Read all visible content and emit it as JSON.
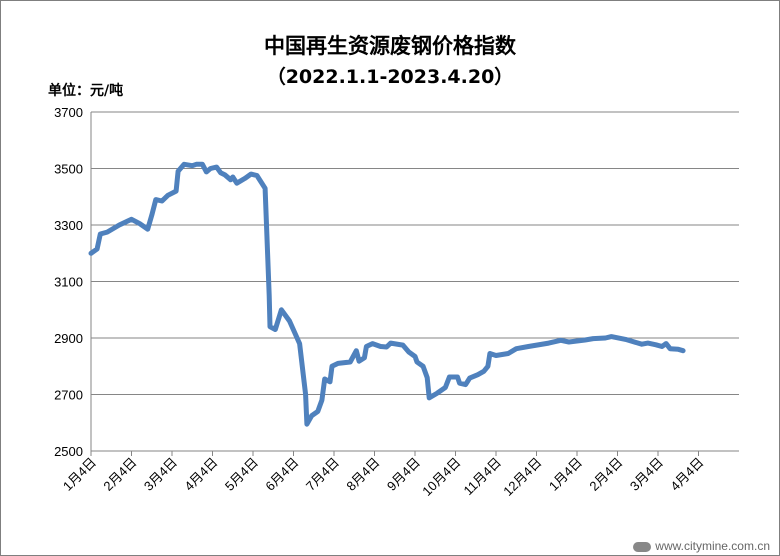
{
  "chart_data": {
    "type": "line",
    "title": "中国再生资源废钢价格指数",
    "subtitle": "（2022.1.1-2023.4.20）",
    "ylabel": "单位：元/吨",
    "xlabel": "",
    "ylim": [
      2500,
      3700
    ],
    "yticks": [
      2500,
      2700,
      2900,
      3100,
      3300,
      3500,
      3700
    ],
    "grid": "horizontal",
    "legend": "none",
    "categories": [
      "1月4日",
      "2月4日",
      "3月4日",
      "4月4日",
      "5月4日",
      "6月4日",
      "7月4日",
      "8月4日",
      "9月4日",
      "10月4日",
      "11月4日",
      "12月4日",
      "1月4日",
      "2月4日",
      "3月4日",
      "4月4日"
    ],
    "color": "#4f81bd",
    "series": [
      {
        "values": [
          [
            0,
            3200
          ],
          [
            0.15,
            3215
          ],
          [
            0.23,
            3268
          ],
          [
            0.4,
            3275
          ],
          [
            0.7,
            3300
          ],
          [
            1.0,
            3320
          ],
          [
            1.2,
            3305
          ],
          [
            1.4,
            3285
          ],
          [
            1.5,
            3335
          ],
          [
            1.6,
            3390
          ],
          [
            1.75,
            3385
          ],
          [
            1.9,
            3405
          ],
          [
            2.1,
            3420
          ],
          [
            2.15,
            3490
          ],
          [
            2.3,
            3515
          ],
          [
            2.5,
            3510
          ],
          [
            2.6,
            3515
          ],
          [
            2.75,
            3515
          ],
          [
            2.85,
            3488
          ],
          [
            2.95,
            3500
          ],
          [
            3.1,
            3505
          ],
          [
            3.2,
            3485
          ],
          [
            3.3,
            3478
          ],
          [
            3.45,
            3460
          ],
          [
            3.5,
            3470
          ],
          [
            3.6,
            3448
          ],
          [
            3.8,
            3465
          ],
          [
            3.95,
            3480
          ],
          [
            4.1,
            3475
          ],
          [
            4.3,
            3430
          ],
          [
            4.4,
            3050
          ],
          [
            4.42,
            2940
          ],
          [
            4.55,
            2930
          ],
          [
            4.7,
            3000
          ],
          [
            4.9,
            2960
          ],
          [
            5.15,
            2880
          ],
          [
            5.3,
            2700
          ],
          [
            5.33,
            2595
          ],
          [
            5.45,
            2625
          ],
          [
            5.6,
            2640
          ],
          [
            5.7,
            2680
          ],
          [
            5.77,
            2755
          ],
          [
            5.9,
            2745
          ],
          [
            5.95,
            2800
          ],
          [
            6.1,
            2810
          ],
          [
            6.4,
            2815
          ],
          [
            6.55,
            2855
          ],
          [
            6.62,
            2818
          ],
          [
            6.75,
            2830
          ],
          [
            6.8,
            2870
          ],
          [
            6.95,
            2880
          ],
          [
            7.15,
            2870
          ],
          [
            7.3,
            2868
          ],
          [
            7.4,
            2882
          ],
          [
            7.7,
            2875
          ],
          [
            7.85,
            2850
          ],
          [
            8.0,
            2835
          ],
          [
            8.05,
            2815
          ],
          [
            8.2,
            2800
          ],
          [
            8.3,
            2760
          ],
          [
            8.35,
            2688
          ],
          [
            8.55,
            2705
          ],
          [
            8.75,
            2725
          ],
          [
            8.85,
            2762
          ],
          [
            9.05,
            2762
          ],
          [
            9.1,
            2740
          ],
          [
            9.25,
            2735
          ],
          [
            9.35,
            2758
          ],
          [
            9.55,
            2770
          ],
          [
            9.7,
            2782
          ],
          [
            9.8,
            2800
          ],
          [
            9.85,
            2845
          ],
          [
            10.0,
            2838
          ],
          [
            10.3,
            2845
          ],
          [
            10.5,
            2862
          ],
          [
            10.8,
            2870
          ],
          [
            11.3,
            2882
          ],
          [
            11.6,
            2892
          ],
          [
            11.8,
            2886
          ],
          [
            12.2,
            2893
          ],
          [
            12.4,
            2898
          ],
          [
            12.7,
            2900
          ],
          [
            12.85,
            2905
          ],
          [
            13.2,
            2895
          ],
          [
            13.6,
            2878
          ],
          [
            13.75,
            2882
          ],
          [
            13.95,
            2876
          ],
          [
            14.1,
            2870
          ],
          [
            14.2,
            2880
          ],
          [
            14.3,
            2862
          ],
          [
            14.5,
            2860
          ],
          [
            14.62,
            2855
          ]
        ]
      }
    ]
  },
  "watermark": "www.citymine.com.cn"
}
